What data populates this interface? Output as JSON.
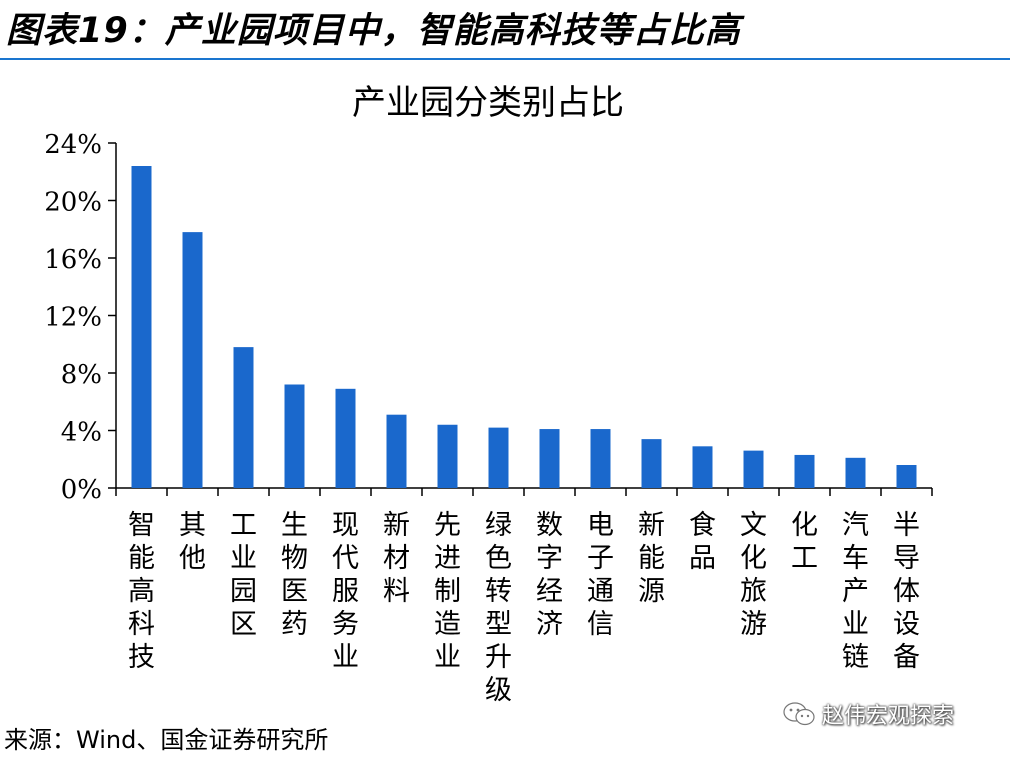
{
  "figure_title": "图表19：产业园项目中，智能高科技等占比高",
  "source_note": "来源：Wind、国金证券研究所",
  "watermark": "赵伟宏观探索",
  "colors": {
    "bar": "#1a68cc",
    "rule": "#1a75cf"
  },
  "chart_data": {
    "type": "bar",
    "title": "产业园分类别占比",
    "xlabel": "",
    "ylabel": "",
    "ylim": [
      0,
      24
    ],
    "yticks": [
      0,
      4,
      8,
      12,
      16,
      20,
      24
    ],
    "ytick_labels": [
      "0%",
      "4%",
      "8%",
      "12%",
      "16%",
      "20%",
      "24%"
    ],
    "grid": false,
    "categories": [
      "智能高科技",
      "其他",
      "工业园区",
      "生物医药",
      "现代服务业",
      "新材料",
      "先进制造业",
      "绿色转型升级",
      "数字经济",
      "电子通信",
      "新能源",
      "食品",
      "文化旅游",
      "化工",
      "汽车产业链",
      "半导体设备"
    ],
    "values": [
      22.4,
      17.8,
      9.8,
      7.2,
      6.9,
      5.1,
      4.4,
      4.2,
      4.1,
      4.1,
      3.4,
      2.9,
      2.6,
      2.3,
      2.1,
      1.6
    ]
  }
}
